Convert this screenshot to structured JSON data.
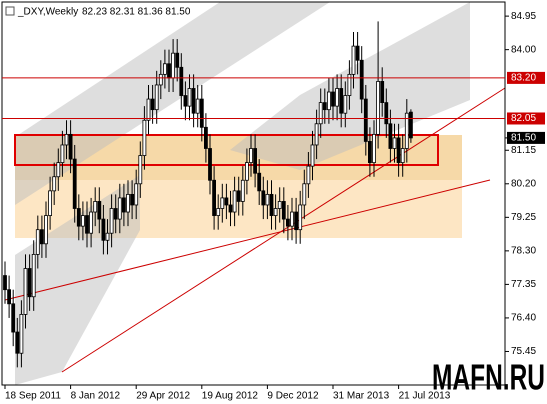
{
  "chart_data": {
    "type": "candlestick",
    "title": "_DXY,Weekly",
    "header_quote": "82.23 82.31 81.36 81.50",
    "watermark": "MAFN.RU",
    "up_color": "#ffffff",
    "down_color": "#000000",
    "categories": [
      "18 Sep 2011",
      null,
      null,
      null,
      null,
      null,
      null,
      null,
      null,
      null,
      null,
      null,
      null,
      null,
      null,
      null,
      "8 Jan 2012",
      null,
      null,
      null,
      null,
      null,
      null,
      null,
      null,
      null,
      null,
      null,
      null,
      null,
      null,
      null,
      "29 Apr 2012",
      null,
      null,
      null,
      null,
      null,
      null,
      null,
      null,
      null,
      null,
      null,
      null,
      null,
      null,
      null,
      "19 Aug 2012",
      null,
      null,
      null,
      null,
      null,
      null,
      null,
      null,
      null,
      null,
      null,
      null,
      null,
      null,
      null,
      "9 Dec 2012",
      null,
      null,
      null,
      null,
      null,
      null,
      null,
      null,
      null,
      null,
      null,
      null,
      null,
      null,
      null,
      "31 Mar 2013",
      null,
      null,
      null,
      null,
      null,
      null,
      null,
      null,
      null,
      null,
      null,
      null,
      null,
      null,
      null,
      "21 Jul 2013",
      null,
      null,
      null
    ],
    "open": [
      77.6,
      77.2,
      76.8,
      76.0,
      75.4,
      76.5,
      77.8,
      77.0,
      78.2,
      78.9,
      78.5,
      79.3,
      80.0,
      80.4,
      80.8,
      81.3,
      81.6,
      80.9,
      79.5,
      79.0,
      79.3,
      78.8,
      79.4,
      79.7,
      79.2,
      78.6,
      78.8,
      79.5,
      79.2,
      79.8,
      79.4,
      79.9,
      79.6,
      80.2,
      81.0,
      82.0,
      82.6,
      82.3,
      83.0,
      83.3,
      83.6,
      83.2,
      83.9,
      83.5,
      82.7,
      82.4,
      82.9,
      82.2,
      82.6,
      81.8,
      81.2,
      80.3,
      79.3,
      79.5,
      79.8,
      79.6,
      79.4,
      80.0,
      79.7,
      80.3,
      80.8,
      81.2,
      80.5,
      80.0,
      79.6,
      79.9,
      79.3,
      79.5,
      79.7,
      79.2,
      79.0,
      79.4,
      78.9,
      79.6,
      80.2,
      80.7,
      81.3,
      81.9,
      82.5,
      82.3,
      82.8,
      82.4,
      82.9,
      82.2,
      82.7,
      83.3,
      84.1,
      83.7,
      82.6,
      81.4,
      80.8,
      81.6,
      83.1,
      82.5,
      81.9,
      81.2,
      81.5,
      80.8,
      81.2,
      82.23
    ],
    "high": [
      78.0,
      77.6,
      77.2,
      76.4,
      76.9,
      78.2,
      78.2,
      78.6,
      79.3,
      79.3,
      79.7,
      80.4,
      80.8,
      81.2,
      81.7,
      82.0,
      82.0,
      81.3,
      79.9,
      79.7,
      79.7,
      79.8,
      80.1,
      80.1,
      79.6,
      79.2,
      79.9,
      79.9,
      80.2,
      80.2,
      80.3,
      80.3,
      80.6,
      81.4,
      82.4,
      83.0,
      83.0,
      83.4,
      83.7,
      84.0,
      84.0,
      84.3,
      84.3,
      83.9,
      83.1,
      83.3,
      83.3,
      83.0,
      83.0,
      82.2,
      81.6,
      80.7,
      79.9,
      80.2,
      80.2,
      80.0,
      80.4,
      80.4,
      80.7,
      81.2,
      81.6,
      81.6,
      80.9,
      80.4,
      80.3,
      80.3,
      79.9,
      80.1,
      80.1,
      79.6,
      79.8,
      79.8,
      80.0,
      80.6,
      81.1,
      81.7,
      82.3,
      82.9,
      82.9,
      83.2,
      83.2,
      83.3,
      83.3,
      83.1,
      83.7,
      84.5,
      84.5,
      84.1,
      83.0,
      81.8,
      82.0,
      84.8,
      83.5,
      82.9,
      82.3,
      81.9,
      81.9,
      81.6,
      82.6,
      82.31
    ],
    "low": [
      76.8,
      76.4,
      75.6,
      75.0,
      75.0,
      76.1,
      76.6,
      76.6,
      77.8,
      78.1,
      78.1,
      78.9,
      79.6,
      80.0,
      80.4,
      80.9,
      80.5,
      79.1,
      78.6,
      78.6,
      78.4,
      78.4,
      79.0,
      78.8,
      78.2,
      78.2,
      78.4,
      78.8,
      78.8,
      79.0,
      79.0,
      79.2,
      79.2,
      79.8,
      80.6,
      81.6,
      81.9,
      81.9,
      82.6,
      82.9,
      82.8,
      82.8,
      83.1,
      82.3,
      82.0,
      82.0,
      81.8,
      81.8,
      81.4,
      80.8,
      79.9,
      78.9,
      78.9,
      79.1,
      79.2,
      79.0,
      79.0,
      79.3,
      79.3,
      79.9,
      80.4,
      80.1,
      79.6,
      79.2,
      79.2,
      78.9,
      78.9,
      79.1,
      78.8,
      78.6,
      78.6,
      78.5,
      78.5,
      79.2,
      79.8,
      80.3,
      80.9,
      81.5,
      81.9,
      81.9,
      82.0,
      82.0,
      81.8,
      81.8,
      82.3,
      82.9,
      83.3,
      82.2,
      81.0,
      80.4,
      80.4,
      81.2,
      82.1,
      81.5,
      80.8,
      80.8,
      80.4,
      80.4,
      80.8,
      81.36
    ],
    "close": [
      77.2,
      76.8,
      76.0,
      75.4,
      76.5,
      77.8,
      77.0,
      78.2,
      78.9,
      78.5,
      79.3,
      80.0,
      80.4,
      80.8,
      81.3,
      81.6,
      80.9,
      79.5,
      79.0,
      79.3,
      78.8,
      79.4,
      79.7,
      79.2,
      78.6,
      78.8,
      79.5,
      79.2,
      79.8,
      79.4,
      79.9,
      79.6,
      80.2,
      81.0,
      82.0,
      82.6,
      82.3,
      83.0,
      83.3,
      83.6,
      83.2,
      83.9,
      83.5,
      82.7,
      82.4,
      82.9,
      82.2,
      82.6,
      81.8,
      81.2,
      80.3,
      79.3,
      79.5,
      79.8,
      79.6,
      79.4,
      80.0,
      79.7,
      80.3,
      80.8,
      81.2,
      80.5,
      80.0,
      79.6,
      79.9,
      79.3,
      79.5,
      79.7,
      79.2,
      79.0,
      79.4,
      78.9,
      79.6,
      80.2,
      80.7,
      81.3,
      81.9,
      82.5,
      82.3,
      82.8,
      82.4,
      82.9,
      82.2,
      82.7,
      83.3,
      84.1,
      83.7,
      82.6,
      81.4,
      80.8,
      81.6,
      83.1,
      82.5,
      81.9,
      81.2,
      81.5,
      80.8,
      81.2,
      82.2,
      81.5
    ],
    "last_price": {
      "value": 81.5,
      "label": "81.50"
    },
    "hlines": [
      {
        "value": 83.2,
        "label": "83.20"
      },
      {
        "value": 82.05,
        "label": "82.05"
      }
    ],
    "hline_color": "#cc0000",
    "ylim": [
      74.5,
      85.35
    ],
    "yticks": [
      84.95,
      {
        "value": 84,
        "label": "84.00"
      },
      81.15,
      {
        "value": 80.2,
        "label": "80.20"
      },
      79.25,
      {
        "value": 78.3,
        "label": "78.30"
      },
      77.35,
      {
        "value": 76.4,
        "label": "76.40"
      },
      75.45
    ]
  }
}
